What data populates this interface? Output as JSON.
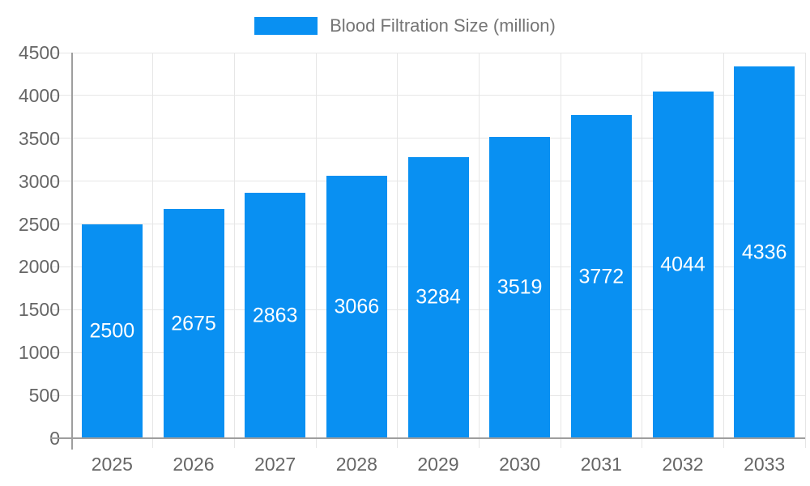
{
  "legend": {
    "label": "Blood Filtration Size (million)"
  },
  "colors": {
    "bar": "#0990F2",
    "grid": "#E6E6E6",
    "axis": "#9E9E9E",
    "axis_text": "#666666",
    "legend_text": "#757575",
    "bar_label_text": "#FFFFFF",
    "background": "#FFFFFF"
  },
  "chart_data": {
    "type": "bar",
    "title": "Blood Filtration Size (million)",
    "categories": [
      "2025",
      "2026",
      "2027",
      "2028",
      "2029",
      "2030",
      "2031",
      "2032",
      "2033"
    ],
    "series": [
      {
        "name": "Blood Filtration Size (million)",
        "values": [
          2500,
          2675,
          2863,
          3066,
          3284,
          3519,
          3772,
          4044,
          4336
        ]
      }
    ],
    "xlabel": "",
    "ylabel": "",
    "ylim": [
      0,
      4500
    ],
    "yticks": [
      0,
      500,
      1000,
      1500,
      2000,
      2500,
      3000,
      3500,
      4000,
      4500
    ],
    "grid": true,
    "legend_position": "top",
    "value_labels": "inside-center"
  }
}
